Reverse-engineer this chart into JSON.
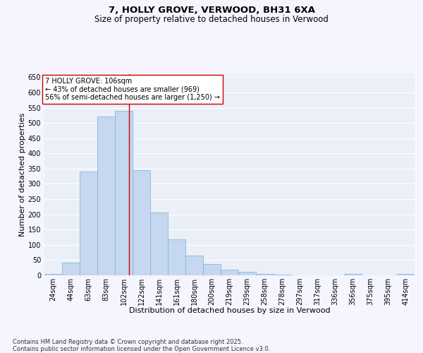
{
  "title1": "7, HOLLY GROVE, VERWOOD, BH31 6XA",
  "title2": "Size of property relative to detached houses in Verwood",
  "xlabel": "Distribution of detached houses by size in Verwood",
  "ylabel": "Number of detached properties",
  "bar_color": "#c5d8ef",
  "bar_edge_color": "#7aafd4",
  "background_color": "#eaeff8",
  "grid_color": "#ffffff",
  "categories": [
    "24sqm",
    "44sqm",
    "63sqm",
    "83sqm",
    "102sqm",
    "122sqm",
    "141sqm",
    "161sqm",
    "180sqm",
    "200sqm",
    "219sqm",
    "239sqm",
    "258sqm",
    "278sqm",
    "297sqm",
    "317sqm",
    "336sqm",
    "356sqm",
    "375sqm",
    "395sqm",
    "414sqm"
  ],
  "bin_edges": [
    14.5,
    33.5,
    52.5,
    71.5,
    90.5,
    109.5,
    128.5,
    147.5,
    166.5,
    185.5,
    204.5,
    223.5,
    242.5,
    261.5,
    280.5,
    299.5,
    318.5,
    337.5,
    356.5,
    375.5,
    394.5,
    413.5
  ],
  "heights": [
    5,
    42,
    340,
    522,
    540,
    345,
    207,
    118,
    65,
    37,
    18,
    12,
    5,
    2,
    0,
    0,
    0,
    5,
    0,
    0,
    5
  ],
  "property_size": 106,
  "vline_color": "#cc0000",
  "annotation_line1": "7 HOLLY GROVE: 106sqm",
  "annotation_line2": "← 43% of detached houses are smaller (969)",
  "annotation_line3": "56% of semi-detached houses are larger (1,250) →",
  "ylim_max": 660,
  "yticks": [
    0,
    50,
    100,
    150,
    200,
    250,
    300,
    350,
    400,
    450,
    500,
    550,
    600,
    650
  ],
  "footer": "Contains HM Land Registry data © Crown copyright and database right 2025.\nContains public sector information licensed under the Open Government Licence v3.0.",
  "title_fontsize": 9.5,
  "subtitle_fontsize": 8.5,
  "axis_label_fontsize": 8,
  "tick_fontsize": 7,
  "annotation_fontsize": 7,
  "footer_fontsize": 6
}
